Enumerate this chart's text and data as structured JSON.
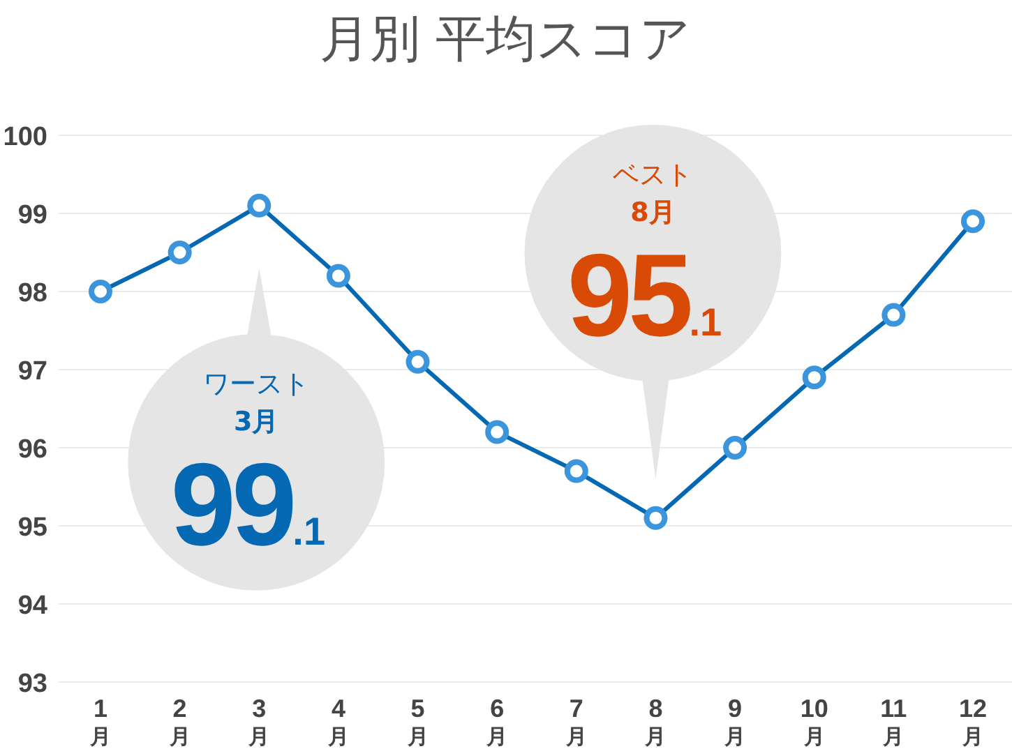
{
  "chart_data": {
    "type": "line",
    "title": "月別 平均スコア",
    "categories": [
      "1月",
      "2月",
      "3月",
      "4月",
      "5月",
      "6月",
      "7月",
      "8月",
      "9月",
      "10月",
      "11月",
      "12月"
    ],
    "series": [
      {
        "color": "#0568b3",
        "values": [
          98.0,
          98.5,
          99.1,
          98.2,
          97.1,
          96.2,
          95.7,
          95.1,
          96.0,
          96.9,
          97.7,
          98.9
        ]
      }
    ],
    "marker": "circle",
    "ylim": [
      93,
      100
    ],
    "yticks": [
      93,
      94,
      95,
      96,
      97,
      98,
      99,
      100
    ],
    "grid": "y",
    "annotations": [
      {
        "text": "ワースト\n3月\n99.1",
        "x": "3月",
        "y": 99.1
      },
      {
        "text": "ベスト\n8月\n95.1",
        "x": "8月",
        "y": 95.1
      }
    ]
  }
}
